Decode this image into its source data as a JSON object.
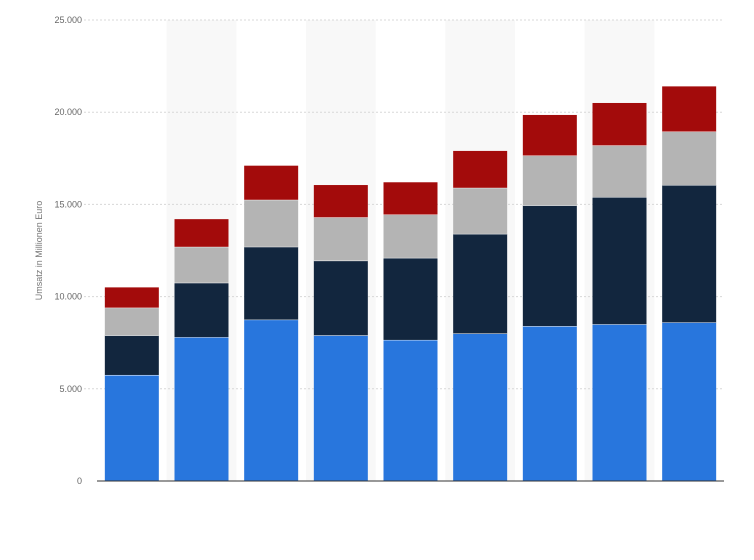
{
  "chart_data": {
    "type": "bar",
    "stacked": true,
    "categories": [
      "",
      "",
      "",
      "",
      "",
      "",
      "",
      "",
      ""
    ],
    "series": [
      {
        "values": [
          5750,
          7800,
          8750,
          7900,
          7650,
          8000,
          8400,
          8500,
          8600
        ],
        "color": "#2876dd"
      },
      {
        "values": [
          2150,
          2950,
          3950,
          4050,
          4450,
          5400,
          6550,
          6900,
          7450
        ],
        "color": "#12263e"
      },
      {
        "values": [
          1500,
          1950,
          2550,
          2350,
          2350,
          2500,
          2700,
          2800,
          2900
        ],
        "color": "#b4b4b4"
      },
      {
        "values": [
          1100,
          1500,
          1850,
          1750,
          1750,
          2000,
          2200,
          2300,
          2450
        ],
        "color": "#a30b0b"
      }
    ],
    "ylabel": "Umsatz in Millionen Euro",
    "ylim": [
      0,
      25000
    ],
    "yticks": [
      "0",
      "5.000",
      "10.000",
      "15.000",
      "20.000",
      "25.000"
    ],
    "ytick_values": [
      0,
      5000,
      10000,
      15000,
      20000,
      25000
    ],
    "grid": true,
    "legend": "none"
  }
}
